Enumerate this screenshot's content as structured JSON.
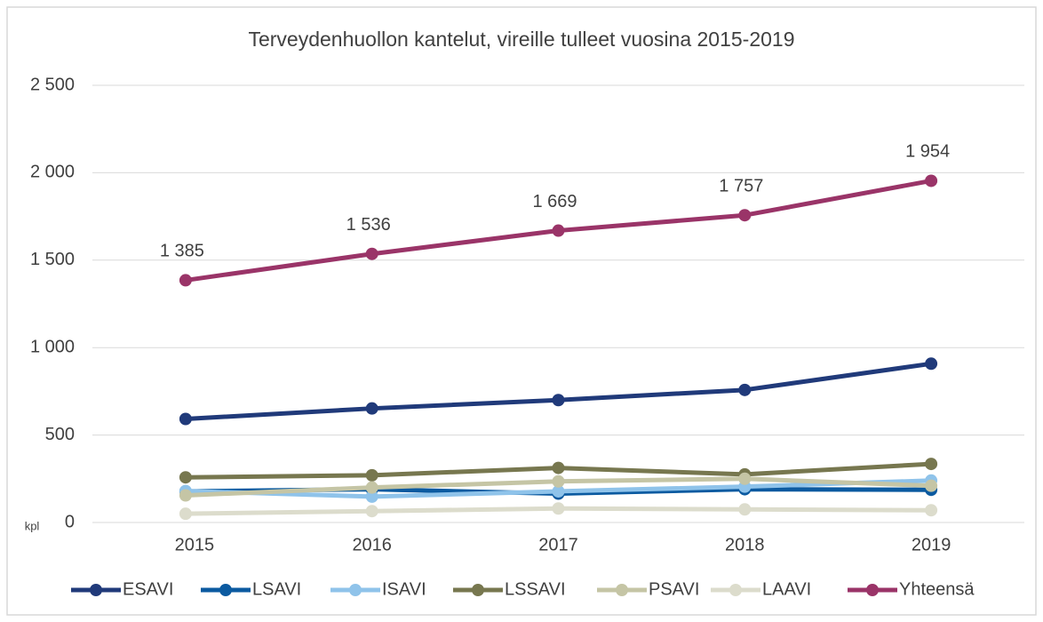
{
  "chart_data": {
    "type": "line",
    "title": "Terveydenhuollon kantelut, vireille tulleet vuosina 2015-2019",
    "y_label": "kpl",
    "categories": [
      "2015",
      "2016",
      "2017",
      "2018",
      "2019"
    ],
    "ylim": [
      0,
      2500
    ],
    "yticks": [
      {
        "value": 0,
        "label": "0"
      },
      {
        "value": 500,
        "label": "500"
      },
      {
        "value": 1000,
        "label": "1 000"
      },
      {
        "value": 1500,
        "label": "1 500"
      },
      {
        "value": 2000,
        "label": "2 000"
      },
      {
        "value": 2500,
        "label": "2 500"
      }
    ],
    "grid": true,
    "legend": "bottom",
    "series": [
      {
        "name": "ESAVI",
        "color": "#203a7a",
        "values": [
          592,
          652,
          700,
          758,
          908
        ]
      },
      {
        "name": "LSAVI",
        "color": "#0b5aa0",
        "values": [
          178,
          190,
          165,
          190,
          187
        ]
      },
      {
        "name": "ISAVI",
        "color": "#8fc3ea",
        "values": [
          180,
          148,
          178,
          205,
          240
        ]
      },
      {
        "name": "LSSAVI",
        "color": "#77774f",
        "values": [
          258,
          270,
          312,
          275,
          335
        ]
      },
      {
        "name": "PSAVI",
        "color": "#c5c5a5",
        "values": [
          155,
          200,
          235,
          250,
          210
        ]
      },
      {
        "name": "LAAVI",
        "color": "#dcdccc",
        "values": [
          50,
          65,
          80,
          75,
          70
        ]
      },
      {
        "name": "Yhteensä",
        "color": "#9a3468",
        "values": [
          1385,
          1536,
          1669,
          1757,
          1954
        ],
        "value_labels": [
          "1 385",
          "1 536",
          "1 669",
          "1 757",
          "1 954"
        ]
      }
    ]
  }
}
